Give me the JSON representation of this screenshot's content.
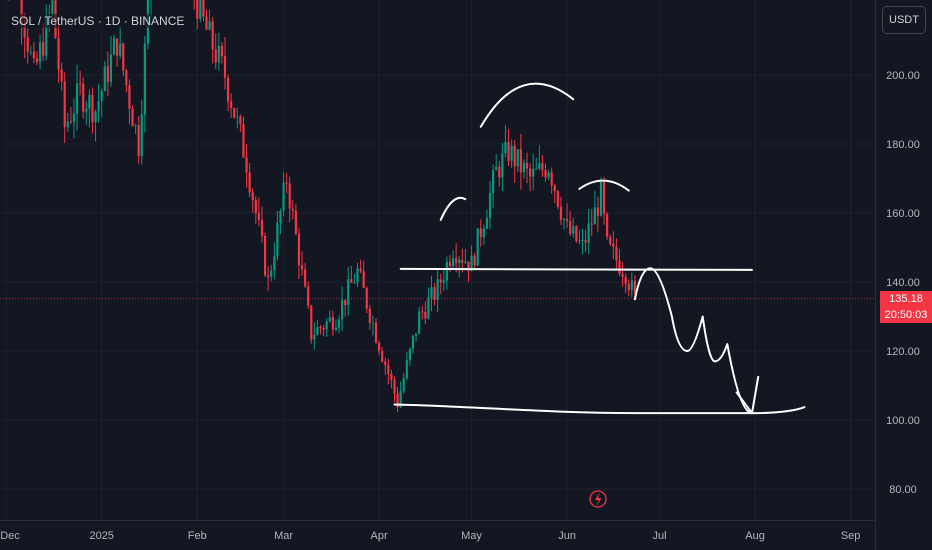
{
  "header": {
    "symbol_title": "SOL / TetherUS · 1D · BINANCE",
    "currency_button": "USDT"
  },
  "last_price": {
    "value": "135.18",
    "countdown": "20:50:03"
  },
  "colors": {
    "background": "#131722",
    "up": "#089981",
    "down": "#f23645",
    "annotation": "#ffffff",
    "axis_text": "#b2b5be"
  },
  "chart_data": {
    "type": "candlestick",
    "title": "SOL / TetherUS · 1D · BINANCE",
    "y_axis": {
      "ticks": [
        "80.00",
        "100.00",
        "120.00",
        "140.00",
        "160.00",
        "180.00",
        "200.00"
      ],
      "ylim": [
        73,
        232
      ]
    },
    "x_axis": {
      "ticks": [
        "Dec",
        "2025",
        "Feb",
        "Mar",
        "Apr",
        "May",
        "Jun",
        "Jul",
        "Aug",
        "Sep"
      ],
      "xlim": [
        "2024-11-29",
        "2025-09-30"
      ]
    },
    "anchors": [
      [
        "2024-11-29",
        235
      ],
      [
        "2024-12-05",
        225
      ],
      [
        "2024-12-10",
        200
      ],
      [
        "2024-12-16",
        220
      ],
      [
        "2024-12-20",
        185
      ],
      [
        "2024-12-25",
        195
      ],
      [
        "2024-12-30",
        190
      ],
      [
        "2025-01-06",
        210
      ],
      [
        "2025-01-13",
        180
      ],
      [
        "2025-01-19",
        260
      ],
      [
        "2025-01-26",
        240
      ],
      [
        "2025-02-03",
        215
      ],
      [
        "2025-02-10",
        200
      ],
      [
        "2025-02-17",
        175
      ],
      [
        "2025-02-24",
        140
      ],
      [
        "2025-03-02",
        170
      ],
      [
        "2025-03-10",
        125
      ],
      [
        "2025-03-18",
        130
      ],
      [
        "2025-03-25",
        143
      ],
      [
        "2025-03-31",
        125
      ],
      [
        "2025-04-07",
        105
      ],
      [
        "2025-04-14",
        130
      ],
      [
        "2025-04-20",
        138
      ],
      [
        "2025-04-25",
        150
      ],
      [
        "2025-05-01",
        145
      ],
      [
        "2025-05-09",
        172
      ],
      [
        "2025-05-13",
        178
      ],
      [
        "2025-05-20",
        170
      ],
      [
        "2025-05-26",
        174
      ],
      [
        "2025-06-01",
        155
      ],
      [
        "2025-06-06",
        150
      ],
      [
        "2025-06-12",
        165
      ],
      [
        "2025-06-14",
        150
      ],
      [
        "2025-06-20",
        143
      ],
      [
        "2025-06-23",
        135
      ]
    ],
    "annotations": {
      "neckline": 143.5,
      "support": 102,
      "projected_path": [
        [
          "2025-06-23",
          135
        ],
        [
          "2025-06-28",
          144
        ],
        [
          "2025-07-05",
          130
        ],
        [
          "2025-07-10",
          120
        ],
        [
          "2025-07-15",
          130
        ],
        [
          "2025-07-19",
          117
        ],
        [
          "2025-07-23",
          122
        ],
        [
          "2025-07-31",
          102
        ]
      ],
      "target_low": 102
    }
  }
}
